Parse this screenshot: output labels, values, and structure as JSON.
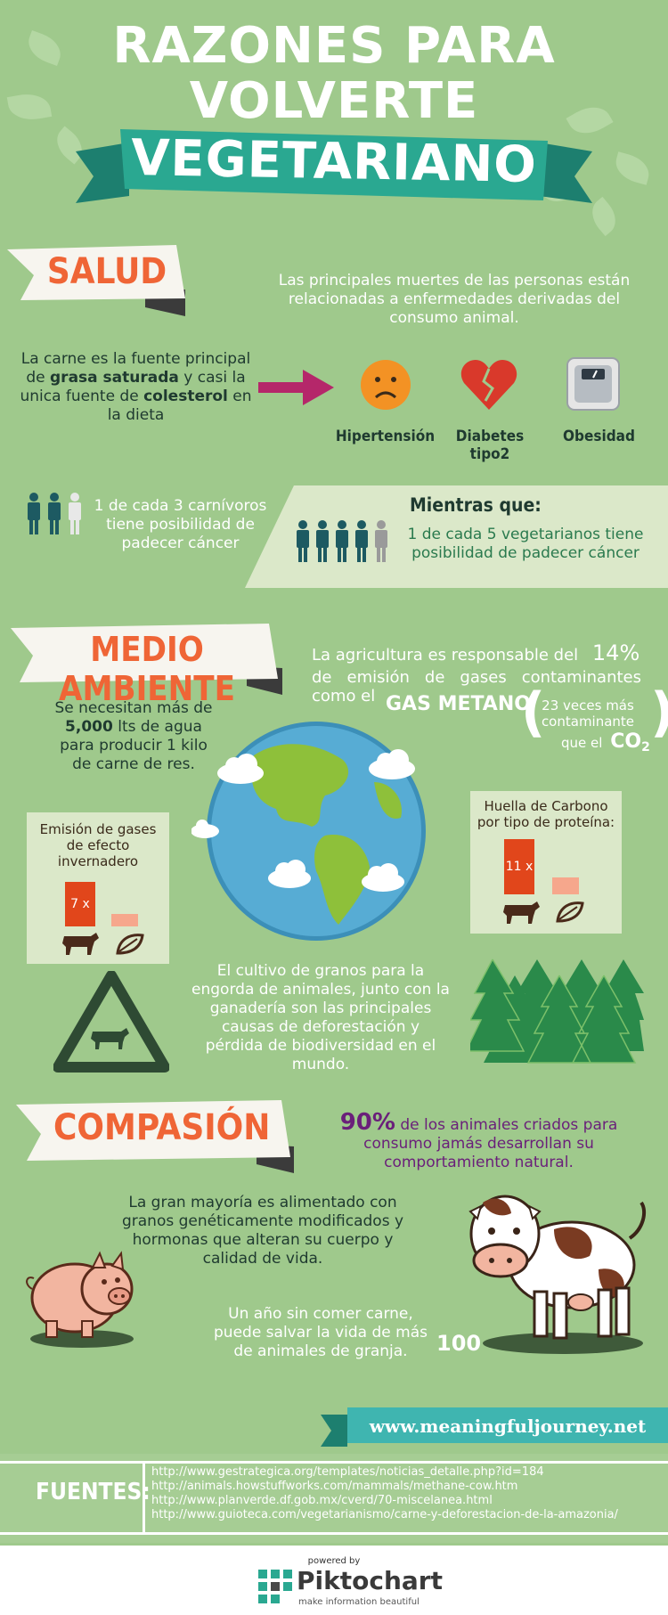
{
  "header": {
    "line1": "RAZONES PARA",
    "line2": "VOLVERTE",
    "line3": "VEGETARIANO"
  },
  "salud": {
    "banner": "SALUD",
    "intro": "Las principales muertes de las personas están relacionadas a enfermedades derivadas del consumo animal.",
    "meat_text_1": "La carne es la fuente principal de ",
    "meat_bold_1": "grasa saturada",
    "meat_text_2": " y casi la unica fuente de ",
    "meat_bold_2": "colesterol",
    "meat_text_3": " en la dieta",
    "conditions": [
      {
        "label": "Hipertensión",
        "icon": "sad-face-icon"
      },
      {
        "label": "Diabetes tipo2",
        "icon": "broken-heart-icon"
      },
      {
        "label": "Obesidad",
        "icon": "scale-icon"
      }
    ],
    "carnivores_text": "1 de cada 3 carnívoros tiene posibilidad de padecer cáncer",
    "mientras": "Mientras que:",
    "vegetarians_text": "1 de cada 5 vegetarianos tiene posibilidad de padecer cáncer"
  },
  "medio": {
    "banner": "MEDIO AMBIENTE",
    "agri_text_1": "La agricultura es responsable del",
    "agri_pct": "14%",
    "agri_text_2": "de emisión de gases contaminantes como el",
    "gas": "GAS METANO",
    "paren_1": "23 veces más contaminante",
    "paren_2": "que el",
    "co2": "CO",
    "co2_sub": "2",
    "water_text_1": "Se necesitan más de ",
    "water_bold": "5,000",
    "water_text_2": " lts de agua para producir 1 kilo de carne de res.",
    "emision_title": "Emisión de gases de efecto invernadero",
    "emision_bar": "7 x",
    "huella_title": "Huella de Carbono por tipo de proteína:",
    "huella_bar": "11 x",
    "deforest_text": "El cultivo de granos para la engorda de animales, junto con la ganadería son las principales causas de deforestación y pérdida de biodiversidad en el mundo."
  },
  "compasion": {
    "banner": "COMPASIÓN",
    "pct": "90%",
    "pct_text": " de los animales criados para consumo jamás desarrollan su comportamiento natural.",
    "gm_text": "La gran mayoría es alimentado con granos genéticamente modificados y hormonas que alteran su cuerpo y calidad de vida.",
    "year_text": "Un año sin comer carne, puede salvar la vida de más de animales de granja.",
    "year_num": "100"
  },
  "website": "www.meaningfuljourney.net",
  "fuentes": {
    "label": "FUENTES:",
    "links": [
      "http://www.gestrategica.org/templates/noticias_detalle.php?id=184",
      "http://animals.howstuffworks.com/mammals/methane-cow.htm",
      "http://www.planverde.df.gob.mx/cverd/70-miscelanea.html",
      "http://www.guioteca.com/vegetarianismo/carne-y-deforestacion-de-la-amazonia/"
    ]
  },
  "footer": {
    "powered": "powered by",
    "brand": "Piktochart",
    "tagline": "make information beautiful"
  },
  "colors": {
    "background": "#9fc98c",
    "accent_orange": "#ef6536",
    "teal": "#2aa891",
    "dark_teal": "#1d5a62",
    "purple": "#6a1f7a",
    "magenta": "#b5276a",
    "red": "#d9392b"
  }
}
